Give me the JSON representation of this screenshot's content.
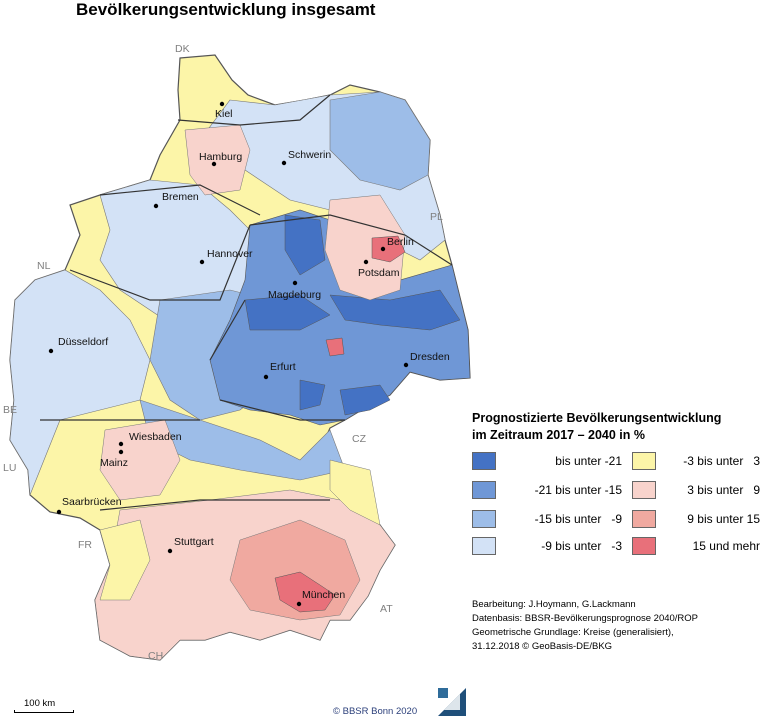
{
  "title": "Bevölkerungsentwicklung insgesamt",
  "map": {
    "cities": [
      {
        "name": "Kiel"
      },
      {
        "name": "Hamburg"
      },
      {
        "name": "Schwerin"
      },
      {
        "name": "Bremen"
      },
      {
        "name": "Berlin"
      },
      {
        "name": "Hannover"
      },
      {
        "name": "Potsdam"
      },
      {
        "name": "Magdeburg"
      },
      {
        "name": "Düsseldorf"
      },
      {
        "name": "Dresden"
      },
      {
        "name": "Erfurt"
      },
      {
        "name": "Wiesbaden"
      },
      {
        "name": "Mainz"
      },
      {
        "name": "Saarbrücken"
      },
      {
        "name": "Stuttgart"
      },
      {
        "name": "München"
      }
    ],
    "countries": [
      "DK",
      "PL",
      "NL",
      "BE",
      "LU",
      "CZ",
      "FR",
      "AT",
      "CH"
    ]
  },
  "legend": {
    "title_line1": "Prognostizierte Bevölkerungsentwicklung",
    "title_line2": "im Zeitraum 2017 – 2040 in %",
    "classes": [
      {
        "label": "bis unter -21",
        "color": "#4472c4"
      },
      {
        "label": "-21 bis unter -15",
        "color": "#6f97d6"
      },
      {
        "label": "-15 bis unter   -9",
        "color": "#9dbde8"
      },
      {
        "label": "-9 bis unter   -3",
        "color": "#d3e2f6"
      },
      {
        "label": "-3 bis unter   3",
        "color": "#fcf5a8"
      },
      {
        "label": "3 bis unter   9",
        "color": "#f8d3cc"
      },
      {
        "label": "9 bis unter 15",
        "color": "#f0a9a0"
      },
      {
        "label": "15 und mehr",
        "color": "#e8707a"
      }
    ]
  },
  "credits": [
    "Bearbeitung: J.Hoymann, G.Lackmann",
    "Datenbasis: BBSR-Bevölkerungsprognose 2040/ROP",
    "Geometrische Grundlage: Kreise (generalisiert),",
    "31.12.2018 © GeoBasis-DE/BKG"
  ],
  "scale_label": "100  km",
  "copyright": "©  BBSR Bonn 2020"
}
